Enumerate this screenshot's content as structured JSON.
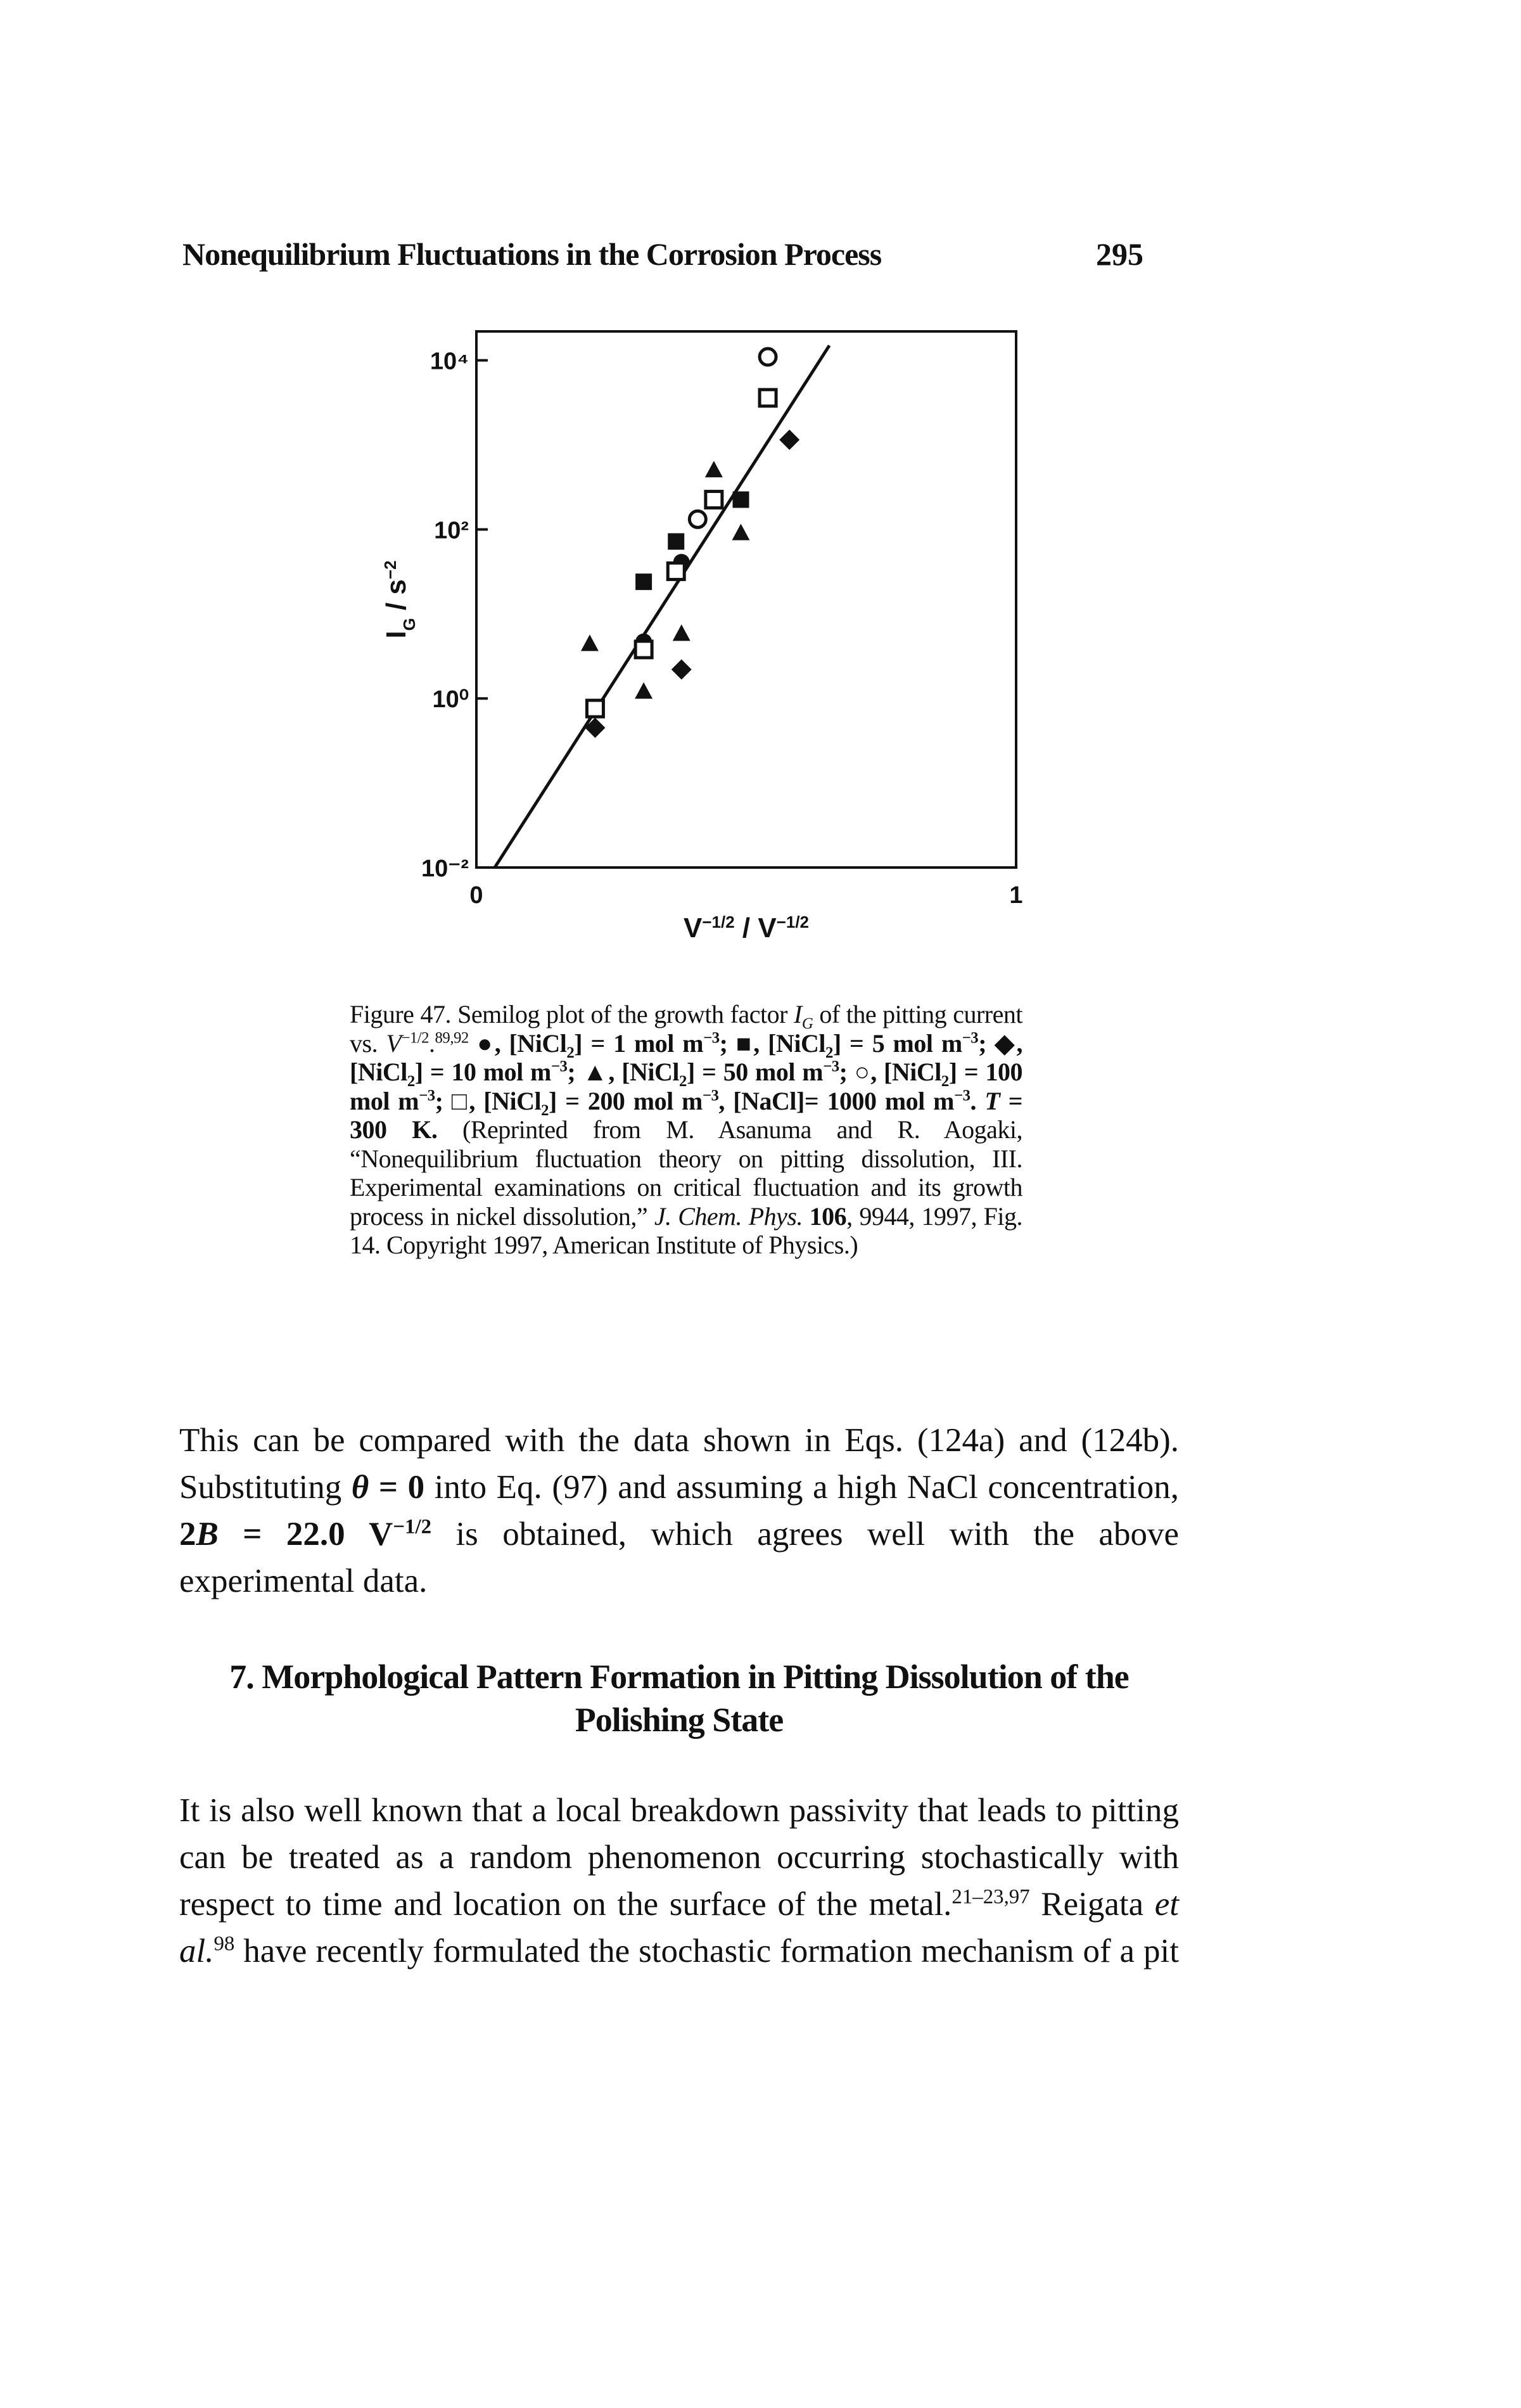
{
  "header": {
    "title": "Nonequilibrium Fluctuations in the Corrosion Process",
    "page_number": "295"
  },
  "chart_data": {
    "type": "scatter",
    "log_y": true,
    "y_label": [
      {
        "t": "I"
      },
      {
        "t": "G",
        "s": "sub"
      },
      {
        "t": " / s"
      },
      {
        "t": "−2",
        "s": "sup"
      }
    ],
    "x_label": [
      {
        "t": "V"
      },
      {
        "t": "−1/2",
        "s": "sup"
      },
      {
        "t": " / V"
      },
      {
        "t": "−1/2",
        "s": "sup"
      }
    ],
    "xlim": [
      0,
      1
    ],
    "xticks": [
      0,
      1
    ],
    "ylim": [
      0.01,
      22000
    ],
    "yticks": [
      {
        "value": 10000,
        "label": "10⁴"
      },
      {
        "value": 100,
        "label": "10²"
      },
      {
        "value": 1,
        "label": "10⁰"
      },
      {
        "value": 0.01,
        "label": "10⁻²"
      }
    ],
    "color": "#111111",
    "series": [
      {
        "marker": "circle-filled",
        "x": [
          0.38,
          0.31
        ],
        "values": [
          41,
          4.7
        ]
      },
      {
        "marker": "square-filled",
        "x": [
          0.31,
          0.49,
          0.37
        ],
        "values": [
          24,
          225,
          72
        ]
      },
      {
        "marker": "diamond-filled",
        "x": [
          0.58,
          0.38,
          0.22
        ],
        "values": [
          1150,
          2.2,
          0.45
        ]
      },
      {
        "marker": "triangle-filled",
        "x": [
          0.44,
          0.49,
          0.21,
          0.31,
          0.38
        ],
        "values": [
          500,
          90,
          4.4,
          1.2,
          5.8
        ]
      },
      {
        "marker": "circle-open",
        "x": [
          0.54,
          0.41
        ],
        "values": [
          11000,
          132
        ]
      },
      {
        "marker": "square-open",
        "x": [
          0.54,
          0.44,
          0.37,
          0.22,
          0.31
        ],
        "values": [
          3600,
          225,
          32,
          0.76,
          3.8
        ]
      }
    ],
    "fit_line": {
      "x": [
        0.034,
        0.654
      ],
      "y": [
        0.01,
        15000
      ]
    }
  },
  "caption": {
    "runs": [
      {
        "t": "Figure 47. Semilog plot of the growth factor "
      },
      {
        "t": "I",
        "s": "i"
      },
      {
        "t": "G",
        "s": "i sub"
      },
      {
        "t": " of the pitting current vs. "
      },
      {
        "t": "V",
        "s": "i"
      },
      {
        "t": "−1/2",
        "s": "sup"
      },
      {
        "t": "."
      },
      {
        "t": "89,92",
        "s": "sup"
      },
      {
        "t": " ●, [NiCl",
        "s": "b"
      },
      {
        "t": "2",
        "s": "b sub"
      },
      {
        "t": "] = 1 mol m",
        "s": "b"
      },
      {
        "t": "−3",
        "s": "b sup"
      },
      {
        "t": "; ■, [NiCl",
        "s": "b"
      },
      {
        "t": "2",
        "s": "b sub"
      },
      {
        "t": "] = 5 mol m",
        "s": "b"
      },
      {
        "t": "−3",
        "s": "b sup"
      },
      {
        "t": "; ◆, [NiCl",
        "s": "b"
      },
      {
        "t": "2",
        "s": "b sub"
      },
      {
        "t": "] = 10 mol m",
        "s": "b"
      },
      {
        "t": "−3",
        "s": "b sup"
      },
      {
        "t": "; ▲, [NiCl",
        "s": "b"
      },
      {
        "t": "2",
        "s": "b sub"
      },
      {
        "t": "] = 50 mol m",
        "s": "b"
      },
      {
        "t": "−3",
        "s": "b sup"
      },
      {
        "t": "; ○, [NiCl",
        "s": "b"
      },
      {
        "t": "2",
        "s": "b sub"
      },
      {
        "t": "] = 100 mol m",
        "s": "b"
      },
      {
        "t": "−3",
        "s": "b sup"
      },
      {
        "t": "; □, [NiCl",
        "s": "b"
      },
      {
        "t": "2",
        "s": "b sub"
      },
      {
        "t": "] = 200 mol m",
        "s": "b"
      },
      {
        "t": "−3",
        "s": "b sup"
      },
      {
        "t": ", [NaCl]= 1000 mol m",
        "s": "b"
      },
      {
        "t": "−3",
        "s": "b sup"
      },
      {
        "t": ". ",
        "s": "b"
      },
      {
        "t": "T",
        "s": "b i"
      },
      {
        "t": " = 300 K.",
        "s": "b"
      },
      {
        "t": " (Reprinted from M. Asanuma and R. Aogaki, “Nonequilibrium fluctuation theory on pitting dissolution, III. Experimental examinations on critical fluctuation and its growth process in nickel dissolution,” "
      },
      {
        "t": "J. Chem. Phys.",
        "s": "i"
      },
      {
        "t": " "
      },
      {
        "t": "106",
        "s": "b"
      },
      {
        "t": ", 9944, 1997, Fig. 14. Copyright 1997, American Institute of Physics.)"
      }
    ]
  },
  "paragraph_1": {
    "runs": [
      {
        "t": "This can be compared with the data shown in Eqs. (124a) and (124b). Substituting "
      },
      {
        "t": "θ",
        "s": "b i"
      },
      {
        "t": " = 0",
        "s": "b"
      },
      {
        "t": " into Eq. (97) and assuming a high NaCl concentration, "
      },
      {
        "t": "2",
        "s": "b"
      },
      {
        "t": "B",
        "s": "b i"
      },
      {
        "t": " = 22.0 V",
        "s": "b"
      },
      {
        "t": "−1/2",
        "s": "b sup"
      },
      {
        "t": " is obtained, which agrees well with the above experimental data."
      }
    ]
  },
  "section": {
    "title": "7. Morphological Pattern Formation in Pitting Dissolution of the Polishing State"
  },
  "paragraph_2": {
    "runs": [
      {
        "t": "It is also well known that a local breakdown passivity that leads to pitting can be treated as a random phenomenon occurring stochastically with respect to time and location on the surface of the metal."
      },
      {
        "t": "21–23,97",
        "s": "sup"
      },
      {
        "t": " Reigata "
      },
      {
        "t": "et al.",
        "s": "i"
      },
      {
        "t": "98",
        "s": "sup"
      },
      {
        "t": " have recently formulated the stochastic formation mechanism of a pit"
      }
    ]
  }
}
